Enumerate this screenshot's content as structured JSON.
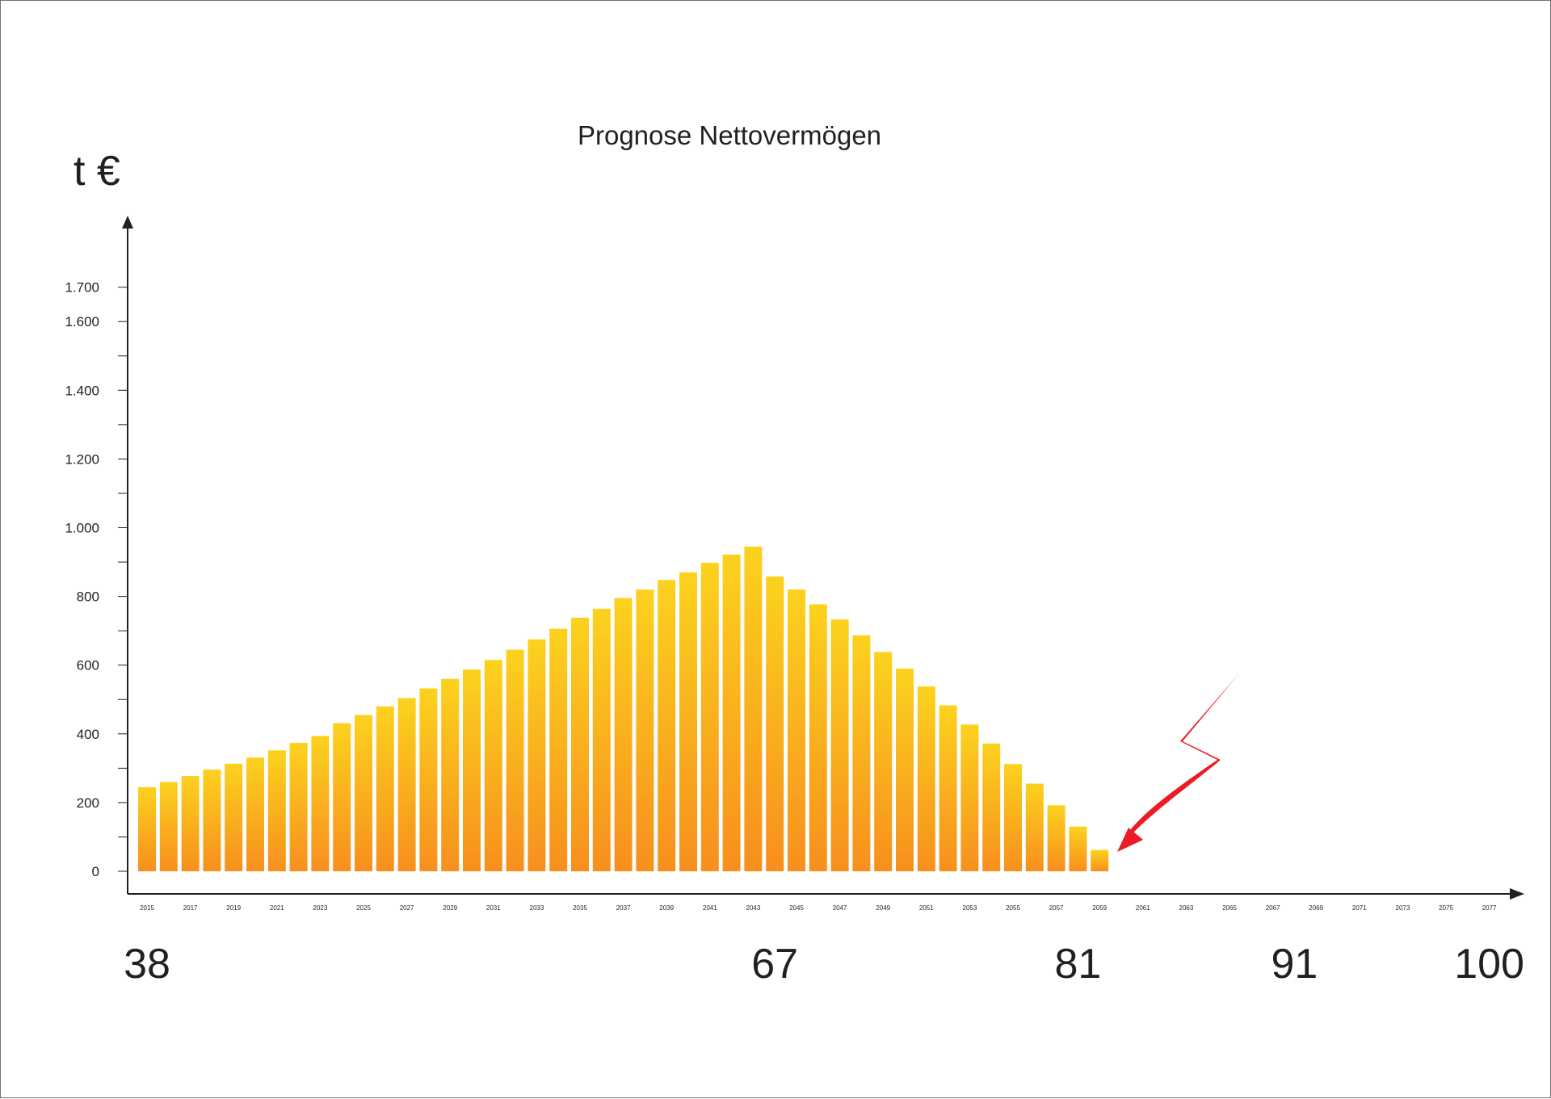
{
  "chart_data": {
    "type": "bar",
    "title": "Prognose Nettovermögen",
    "ylabel": "t €",
    "xlabel": "",
    "ylim": [
      0,
      1900
    ],
    "yticks": [
      0,
      200,
      400,
      600,
      800,
      1000,
      1200,
      1400,
      1600,
      1700
    ],
    "ytick_labels": [
      "0",
      "200",
      "400",
      "600",
      "800",
      "1.000",
      "1.200",
      "1.400",
      "1.600",
      "1.700"
    ],
    "yminor": [
      100,
      300,
      500,
      700,
      900,
      1100,
      1300,
      1500
    ],
    "x_tick_labels": [
      "2015",
      "2017",
      "2019",
      "2021",
      "2023",
      "2025",
      "2027",
      "2029",
      "2031",
      "2033",
      "2035",
      "2037",
      "2039",
      "2041",
      "2043",
      "2045",
      "2047",
      "2049",
      "2051",
      "2053",
      "2055",
      "2057",
      "2059",
      "2061",
      "2063",
      "2065",
      "2067",
      "2069",
      "2071",
      "2073",
      "2075",
      "2077"
    ],
    "age_labels": [
      {
        "year": 2015,
        "label": "38"
      },
      {
        "year": 2044,
        "label": "67"
      },
      {
        "year": 2058,
        "label": "81"
      },
      {
        "year": 2068,
        "label": "91"
      },
      {
        "year": 2077,
        "label": "100"
      }
    ],
    "categories": [
      2015,
      2016,
      2017,
      2018,
      2019,
      2020,
      2021,
      2022,
      2023,
      2024,
      2025,
      2026,
      2027,
      2028,
      2029,
      2030,
      2031,
      2032,
      2033,
      2034,
      2035,
      2036,
      2037,
      2038,
      2039,
      2040,
      2041,
      2042,
      2043,
      2044,
      2045,
      2046,
      2047,
      2048,
      2049,
      2050,
      2051,
      2052,
      2053,
      2054,
      2055,
      2056,
      2057,
      2058,
      2059
    ],
    "values": [
      245,
      260,
      277,
      296,
      313,
      331,
      352,
      374,
      394,
      431,
      455,
      480,
      504,
      532,
      560,
      587,
      615,
      645,
      675,
      706,
      738,
      764,
      795,
      820,
      848,
      870,
      898,
      922,
      945,
      858,
      820,
      777,
      733,
      687,
      638,
      590,
      538,
      483,
      427,
      372,
      312,
      255,
      192,
      130,
      62
    ]
  },
  "colors": {
    "bar_top": "#fcd21e",
    "bar_bottom": "#f78f1e",
    "axis": "#231f20",
    "arrow": "#ec1c24"
  },
  "annotation": {
    "icon": "red-lightning-arrow-icon"
  }
}
